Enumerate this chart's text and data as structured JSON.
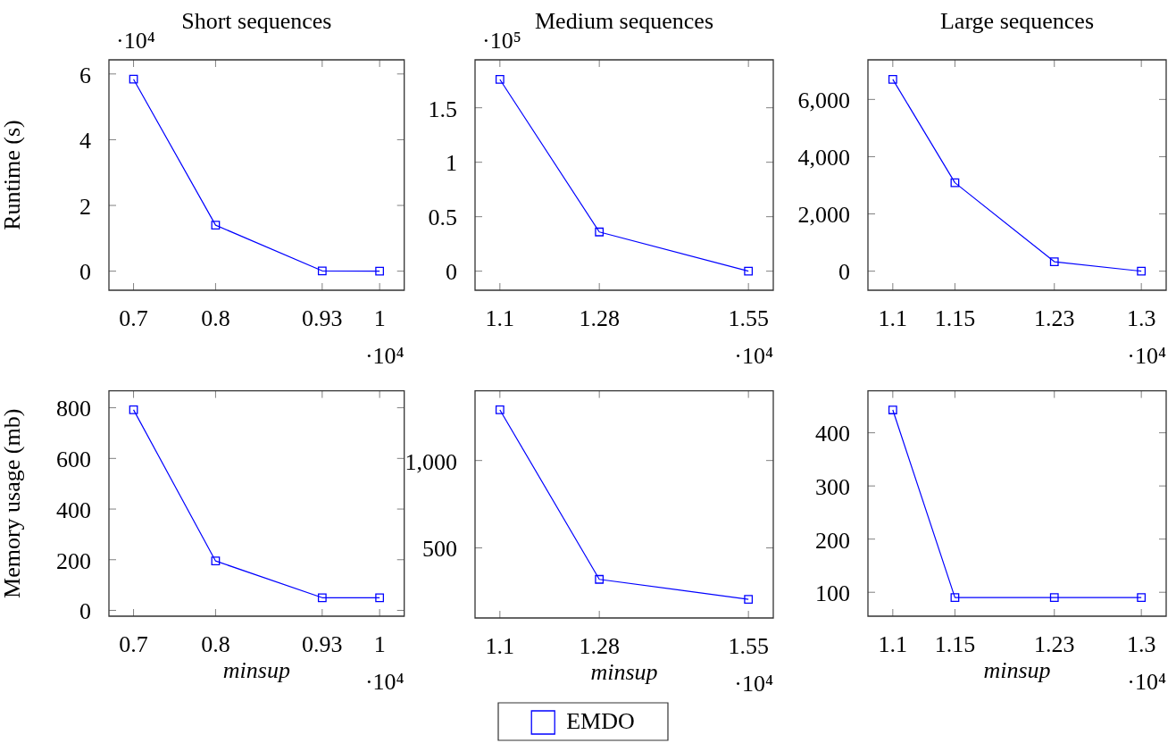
{
  "chart_data": [
    {
      "type": "line",
      "title": "Short sequences",
      "ylabel": "Runtime (s)",
      "x": [
        0.7,
        0.8,
        0.93,
        1
      ],
      "marker": "square",
      "series": [
        {
          "color": "#0000ff",
          "values": [
            5.84,
            1.4,
            0.01,
            0
          ]
        }
      ],
      "xlim": [
        0.67,
        1.03
      ],
      "xticks": [
        0.7,
        0.8,
        0.93,
        1
      ],
      "ylim": [
        -0.58,
        6.43
      ],
      "yticks": [
        0,
        2,
        4,
        6
      ],
      "annotations": [
        "·10⁴",
        "·10⁴"
      ]
    },
    {
      "type": "line",
      "title": "Medium sequences",
      "x": [
        1.1,
        1.28,
        1.55
      ],
      "marker": "square",
      "series": [
        {
          "color": "#0000ff",
          "values": [
            1.76,
            0.36,
            0
          ]
        }
      ],
      "xlim": [
        1.055,
        1.595
      ],
      "xticks": [
        1.1,
        1.28,
        1.55
      ],
      "ylim": [
        -0.175,
        1.94
      ],
      "yticks": [
        0,
        0.5,
        1,
        1.5
      ],
      "annotations": [
        "·10⁵",
        "·10⁴"
      ]
    },
    {
      "type": "line",
      "title": "Large sequences",
      "x": [
        1.1,
        1.15,
        1.23,
        1.3
      ],
      "marker": "square",
      "series": [
        {
          "color": "#0000ff",
          "values": [
            6700,
            3090,
            330,
            0
          ]
        }
      ],
      "xlim": [
        1.08,
        1.32
      ],
      "xticks": [
        1.1,
        1.15,
        1.23,
        1.3
      ],
      "ylim": [
        -666,
        7383
      ],
      "yticks": [
        0,
        {
          "value": 2000,
          "label": "2,000"
        },
        {
          "value": 4000,
          "label": "4,000"
        },
        {
          "value": 6000,
          "label": "6,000"
        }
      ],
      "annotations": [
        "·10⁴"
      ]
    },
    {
      "type": "line",
      "xlabel": "minsup",
      "ylabel": "Memory usage (mb)",
      "x": [
        0.7,
        0.8,
        0.93,
        1
      ],
      "marker": "square",
      "series": [
        {
          "color": "#0000ff",
          "values": [
            792,
            195,
            50,
            50
          ]
        }
      ],
      "xlim": [
        0.67,
        1.03
      ],
      "xticks": [
        0.7,
        0.8,
        0.93,
        1
      ],
      "ylim": [
        -23,
        867
      ],
      "yticks": [
        0,
        200,
        400,
        600,
        800
      ],
      "annotations": [
        "·10⁴"
      ]
    },
    {
      "type": "line",
      "xlabel": "minsup",
      "x": [
        1.1,
        1.28,
        1.55
      ],
      "marker": "square",
      "legend": "bottom",
      "series": [
        {
          "name": "EMDO",
          "color": "#0000ff",
          "values": [
            1290,
            320,
            206
          ]
        }
      ],
      "xlim": [
        1.055,
        1.595
      ],
      "xticks": [
        1.1,
        1.28,
        1.55
      ],
      "ylim": [
        99,
        1399
      ],
      "yticks": [
        500,
        {
          "value": 1000,
          "label": "1,000"
        }
      ],
      "annotations": [
        "·10⁴"
      ]
    },
    {
      "type": "line",
      "xlabel": "minsup",
      "x": [
        1.1,
        1.15,
        1.23,
        1.3
      ],
      "marker": "square",
      "series": [
        {
          "color": "#0000ff",
          "values": [
            443,
            90,
            90,
            90
          ]
        }
      ],
      "xlim": [
        1.08,
        1.32
      ],
      "xticks": [
        1.1,
        1.15,
        1.23,
        1.3
      ],
      "ylim": [
        55,
        479
      ],
      "yticks": [
        100,
        200,
        300,
        400
      ],
      "annotations": [
        "·10⁴"
      ]
    }
  ]
}
